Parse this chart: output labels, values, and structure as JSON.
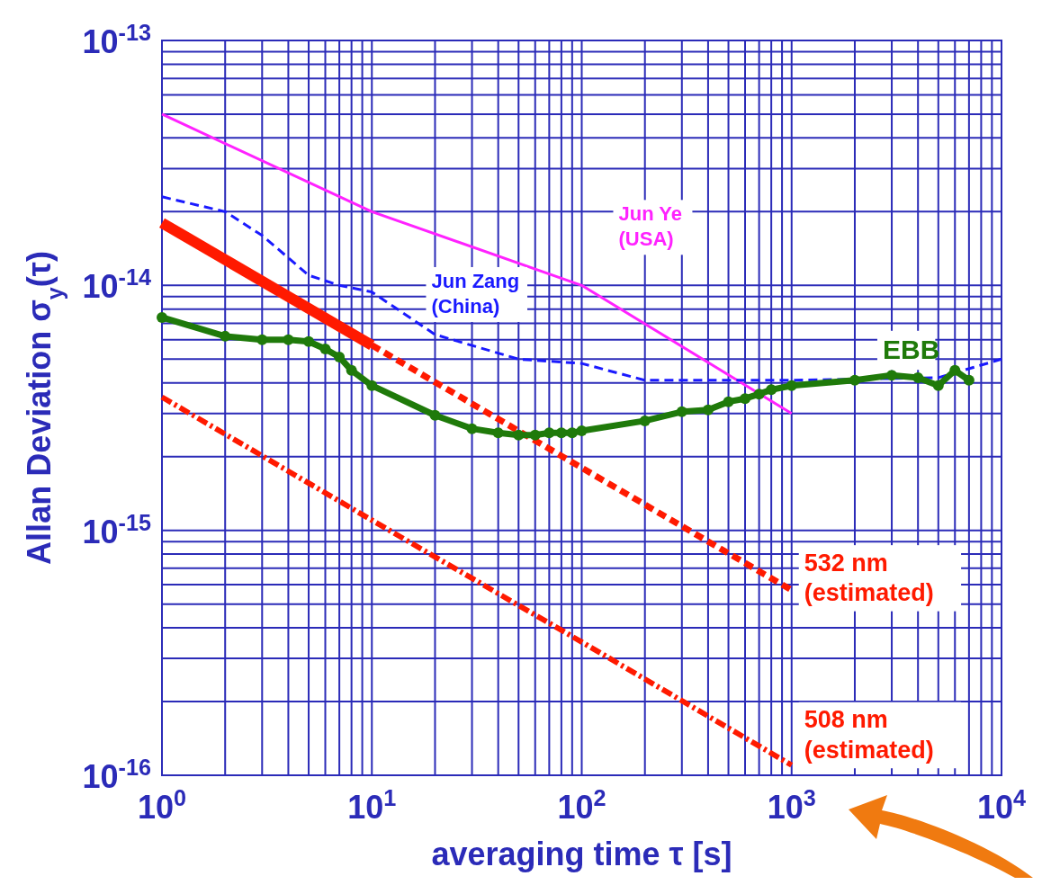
{
  "chart_data": {
    "type": "line",
    "xlabel": "averaging time τ [s]",
    "ylabel": "Allan Deviation σ$_{y}$(τ)",
    "log": "xy",
    "grid": true,
    "xlim": [
      1,
      10000
    ],
    "xticks": [
      {
        "value": 1,
        "label": "10$^{0}$"
      },
      {
        "value": 10,
        "label": "10$^{1}$"
      },
      {
        "value": 100,
        "label": "10$^{2}$"
      },
      {
        "value": 1000,
        "label": "10$^{3}$"
      },
      {
        "value": 10000,
        "label": "10$^{4}$"
      }
    ],
    "ylim": [
      1e-16,
      1e-13
    ],
    "yticks": [
      {
        "value": 1e-16,
        "label": "10$^{-16}$"
      },
      {
        "value": 1e-15,
        "label": "10$^{-15}$"
      },
      {
        "value": 1e-14,
        "label": "10$^{-14}$"
      },
      {
        "value": 1e-13,
        "label": "10$^{-13}$"
      }
    ],
    "series": [
      {
        "name": "Jun Ye (USA)",
        "color": "#ff22ff",
        "line_style": "solid",
        "marker": "none",
        "x": [
          1,
          10,
          100,
          1000
        ],
        "values": [
          5e-14,
          2e-14,
          1e-14,
          3e-15
        ]
      },
      {
        "name": "Jun Zang (China)",
        "color": "#1a1aff",
        "line_style": "dashed",
        "marker": "none",
        "x": [
          1,
          2,
          3,
          5,
          7,
          10,
          20,
          50,
          100,
          200,
          1000,
          5000,
          10000
        ],
        "values": [
          2.3e-14,
          2e-14,
          1.6e-14,
          1.1e-14,
          1e-14,
          9.4e-15,
          6.3e-15,
          5e-15,
          4.8e-15,
          4.1e-15,
          4.1e-15,
          4.2e-15,
          5e-15
        ]
      },
      {
        "color": "#ff1a00",
        "line_style": "solid",
        "marker": "none",
        "x": [
          1,
          10
        ],
        "values": [
          1.8e-14,
          5.7e-15
        ]
      },
      {
        "name": "532 nm (estimated)",
        "color": "#ff1a00",
        "line_style": "dashed",
        "marker": "none",
        "x": [
          10,
          100,
          1000
        ],
        "values": [
          5.7e-15,
          1.8e-15,
          5.7e-16
        ]
      },
      {
        "name": "508 nm (estimated)",
        "color": "#ff1a00",
        "line_style": "dotted",
        "marker": "none",
        "x": [
          1,
          10,
          100,
          1000
        ],
        "values": [
          3.5e-15,
          1.1e-15,
          3.5e-16,
          1.1e-16
        ]
      },
      {
        "name": "EBB",
        "color": "#1f7a0a",
        "line_style": "solid",
        "marker": "circle",
        "x": [
          1,
          2,
          3,
          4,
          5,
          6,
          7,
          8,
          10,
          20,
          30,
          40,
          50,
          60,
          70,
          80,
          90,
          100,
          200,
          300,
          400,
          500,
          600,
          700,
          800,
          1000,
          2000,
          3000,
          4000,
          5000,
          6000,
          7000
        ],
        "values": [
          7.4e-15,
          6.2e-15,
          6e-15,
          6e-15,
          5.9e-15,
          5.5e-15,
          5.1e-15,
          4.5e-15,
          3.9e-15,
          2.95e-15,
          2.6e-15,
          2.5e-15,
          2.45e-15,
          2.45e-15,
          2.5e-15,
          2.5e-15,
          2.5e-15,
          2.55e-15,
          2.8e-15,
          3.05e-15,
          3.1e-15,
          3.35e-15,
          3.45e-15,
          3.6e-15,
          3.75e-15,
          3.9e-15,
          4.1e-15,
          4.3e-15,
          4.2e-15,
          3.9e-15,
          4.5e-15,
          4.1e-15
        ]
      }
    ]
  }
}
